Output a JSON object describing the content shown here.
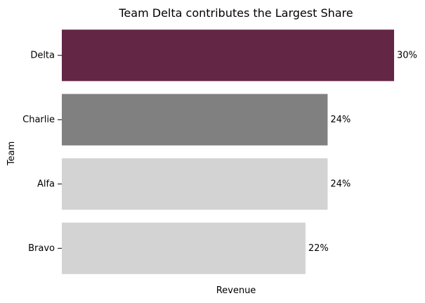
{
  "chart_data": {
    "type": "bar",
    "orientation": "horizontal",
    "title": "Team Delta contributes the Largest Share",
    "xlabel": "Revenue",
    "ylabel": "Team",
    "categories": [
      "Delta",
      "Charlie",
      "Alfa",
      "Bravo"
    ],
    "values": [
      30,
      24,
      24,
      22
    ],
    "value_labels": [
      "30%",
      "24%",
      "24%",
      "22%"
    ],
    "colors": [
      "#632645",
      "#808080",
      "#d3d3d3",
      "#d3d3d3"
    ],
    "xlim": [
      0,
      30
    ],
    "x_ticks_visible": false,
    "grid": false,
    "legend": "none"
  }
}
